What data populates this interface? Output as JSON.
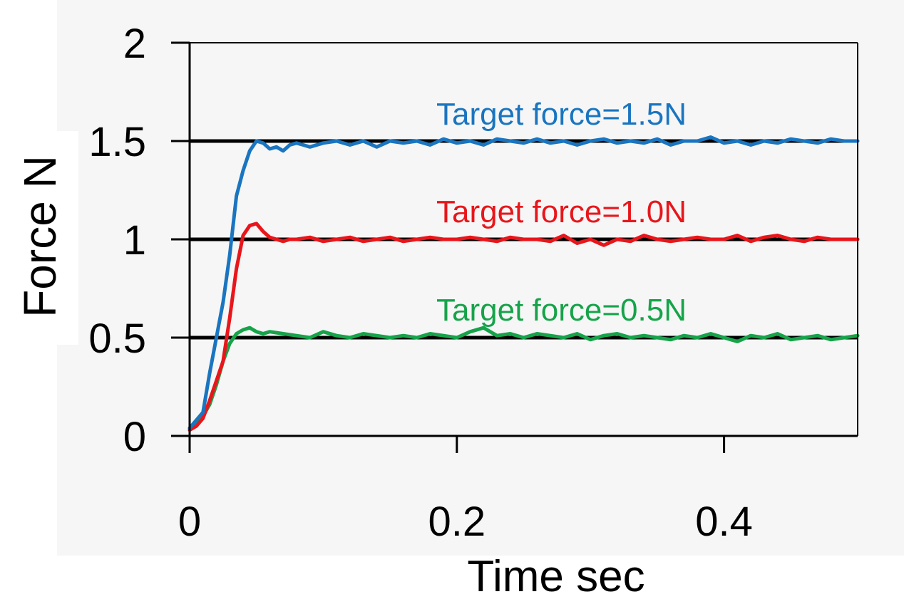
{
  "chart_data": {
    "type": "line",
    "title": "",
    "xlabel": "Time sec",
    "ylabel": "Force N",
    "xlim": [
      0,
      0.5
    ],
    "ylim": [
      0,
      2
    ],
    "xticks": [
      0,
      0.2,
      0.4
    ],
    "xtick_labels": [
      "0",
      "0.2",
      "0.4"
    ],
    "yticks": [
      0,
      0.5,
      1,
      1.5,
      2
    ],
    "ytick_labels": [
      "0",
      "0.5",
      "1",
      "1.5",
      "2"
    ],
    "gridlines_y": [
      0.5,
      1,
      1.5
    ],
    "grid": true,
    "legend": "none",
    "series": [
      {
        "color": "#1a75c0",
        "label": "Target force=1.5N",
        "x": [
          0,
          0.005,
          0.01,
          0.015,
          0.02,
          0.025,
          0.03,
          0.035,
          0.04,
          0.045,
          0.05,
          0.055,
          0.06,
          0.065,
          0.07,
          0.075,
          0.08,
          0.085,
          0.09,
          0.1,
          0.11,
          0.12,
          0.13,
          0.14,
          0.15,
          0.16,
          0.17,
          0.18,
          0.19,
          0.2,
          0.21,
          0.22,
          0.23,
          0.24,
          0.25,
          0.26,
          0.27,
          0.28,
          0.29,
          0.3,
          0.31,
          0.32,
          0.33,
          0.34,
          0.35,
          0.36,
          0.37,
          0.38,
          0.39,
          0.4,
          0.41,
          0.42,
          0.43,
          0.44,
          0.45,
          0.46,
          0.47,
          0.48,
          0.49,
          0.5
        ],
        "y": [
          0.04,
          0.08,
          0.12,
          0.32,
          0.5,
          0.68,
          0.92,
          1.22,
          1.35,
          1.45,
          1.5,
          1.49,
          1.46,
          1.47,
          1.45,
          1.48,
          1.49,
          1.48,
          1.47,
          1.49,
          1.5,
          1.48,
          1.5,
          1.47,
          1.5,
          1.49,
          1.5,
          1.48,
          1.51,
          1.49,
          1.5,
          1.48,
          1.51,
          1.5,
          1.49,
          1.51,
          1.49,
          1.5,
          1.48,
          1.5,
          1.51,
          1.49,
          1.5,
          1.49,
          1.51,
          1.48,
          1.5,
          1.5,
          1.52,
          1.49,
          1.5,
          1.48,
          1.5,
          1.49,
          1.51,
          1.5,
          1.49,
          1.51,
          1.5,
          1.5
        ]
      },
      {
        "color": "#e8161b",
        "label": "Target force=1.0N",
        "x": [
          0,
          0.005,
          0.01,
          0.015,
          0.02,
          0.025,
          0.03,
          0.035,
          0.04,
          0.045,
          0.05,
          0.055,
          0.06,
          0.065,
          0.07,
          0.075,
          0.08,
          0.09,
          0.1,
          0.11,
          0.12,
          0.13,
          0.14,
          0.15,
          0.16,
          0.17,
          0.18,
          0.19,
          0.2,
          0.21,
          0.22,
          0.23,
          0.24,
          0.25,
          0.26,
          0.27,
          0.28,
          0.29,
          0.3,
          0.31,
          0.32,
          0.33,
          0.34,
          0.35,
          0.36,
          0.37,
          0.38,
          0.39,
          0.4,
          0.41,
          0.42,
          0.43,
          0.44,
          0.45,
          0.46,
          0.47,
          0.48,
          0.49,
          0.5
        ],
        "y": [
          0.03,
          0.05,
          0.09,
          0.18,
          0.28,
          0.38,
          0.6,
          0.85,
          1.02,
          1.07,
          1.08,
          1.04,
          1.01,
          1.0,
          0.99,
          1.0,
          1.0,
          1.01,
          0.99,
          1.0,
          1.01,
          0.99,
          1.0,
          1.01,
          0.99,
          1.0,
          1.01,
          1.0,
          1.0,
          1.01,
          1.0,
          0.99,
          1.01,
          1.0,
          1.0,
          0.99,
          1.02,
          0.98,
          1.0,
          0.97,
          1.0,
          0.99,
          1.02,
          1.0,
          0.99,
          1.0,
          1.01,
          1.0,
          1.0,
          1.02,
          0.99,
          1.01,
          1.02,
          1.0,
          0.99,
          1.01,
          1.0,
          1.0,
          1.0
        ]
      },
      {
        "color": "#16a34a",
        "label": "Target force=0.5N",
        "x": [
          0,
          0.005,
          0.01,
          0.015,
          0.02,
          0.025,
          0.03,
          0.035,
          0.04,
          0.045,
          0.05,
          0.055,
          0.06,
          0.07,
          0.08,
          0.09,
          0.1,
          0.11,
          0.12,
          0.13,
          0.14,
          0.15,
          0.16,
          0.17,
          0.18,
          0.19,
          0.2,
          0.21,
          0.22,
          0.23,
          0.24,
          0.25,
          0.26,
          0.27,
          0.28,
          0.29,
          0.3,
          0.31,
          0.32,
          0.33,
          0.34,
          0.35,
          0.36,
          0.37,
          0.38,
          0.39,
          0.4,
          0.41,
          0.42,
          0.43,
          0.44,
          0.45,
          0.46,
          0.47,
          0.48,
          0.49,
          0.5
        ],
        "y": [
          0.04,
          0.06,
          0.1,
          0.16,
          0.26,
          0.38,
          0.47,
          0.52,
          0.54,
          0.55,
          0.53,
          0.52,
          0.53,
          0.52,
          0.51,
          0.5,
          0.53,
          0.51,
          0.5,
          0.52,
          0.51,
          0.5,
          0.51,
          0.5,
          0.52,
          0.51,
          0.5,
          0.53,
          0.55,
          0.51,
          0.52,
          0.5,
          0.52,
          0.51,
          0.5,
          0.52,
          0.49,
          0.51,
          0.52,
          0.5,
          0.51,
          0.5,
          0.49,
          0.51,
          0.5,
          0.52,
          0.5,
          0.48,
          0.51,
          0.5,
          0.52,
          0.49,
          0.5,
          0.51,
          0.49,
          0.5,
          0.51
        ]
      }
    ],
    "annotations": [
      {
        "text": "Target force=1.5N",
        "color": "#1a75c0"
      },
      {
        "text": "Target force=1.0N",
        "color": "#e8161b"
      },
      {
        "text": "Target force=0.5N",
        "color": "#16a34a"
      }
    ]
  }
}
